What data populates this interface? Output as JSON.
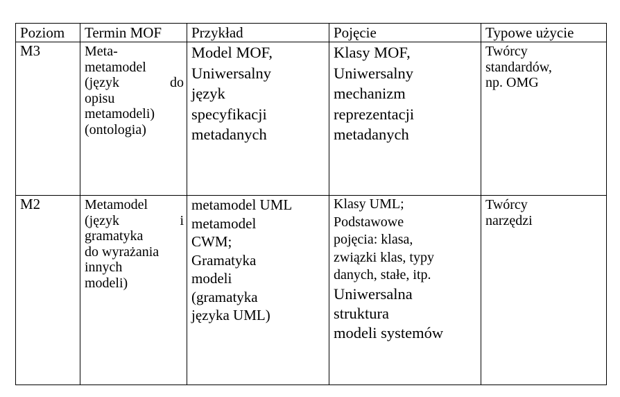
{
  "table": {
    "headers": [
      "Poziom",
      "Termin MOF",
      "Przykład",
      "Pojęcie",
      "Typowe użycie"
    ],
    "rows": [
      {
        "level": "M3",
        "term": [
          "Meta-",
          "metamodel",
          [
            "(język",
            "do"
          ],
          "opisu",
          "metamodeli)",
          "(ontologia)"
        ],
        "example": [
          "Model MOF,",
          "Uniwersalny",
          "język",
          "specyfikacji",
          "metadanych"
        ],
        "concept": [
          "Klasy MOF,",
          "Uniwersalny",
          "mechanizm",
          "reprezentacji",
          "metadanych"
        ],
        "usage": [
          "Twórcy",
          "standardów,",
          "np. OMG"
        ]
      },
      {
        "level": "M2",
        "term": [
          "Metamodel",
          [
            "(język",
            "i"
          ],
          "gramatyka",
          "do wyrażania",
          "innych",
          "modeli)"
        ],
        "example": [
          "metamodel UML",
          "metamodel",
          "CWM;",
          "Gramatyka",
          "modeli",
          "(gramatyka",
          "języka UML)"
        ],
        "concept": [
          "Klasy UML;",
          "Podstawowe",
          "pojęcia: klasa,",
          "związki klas, typy",
          "danych, stałe, itp.",
          "Uniwersalna",
          "struktura",
          "modeli systemów"
        ],
        "usage": [
          "Twórcy",
          "narzędzi"
        ]
      }
    ]
  }
}
